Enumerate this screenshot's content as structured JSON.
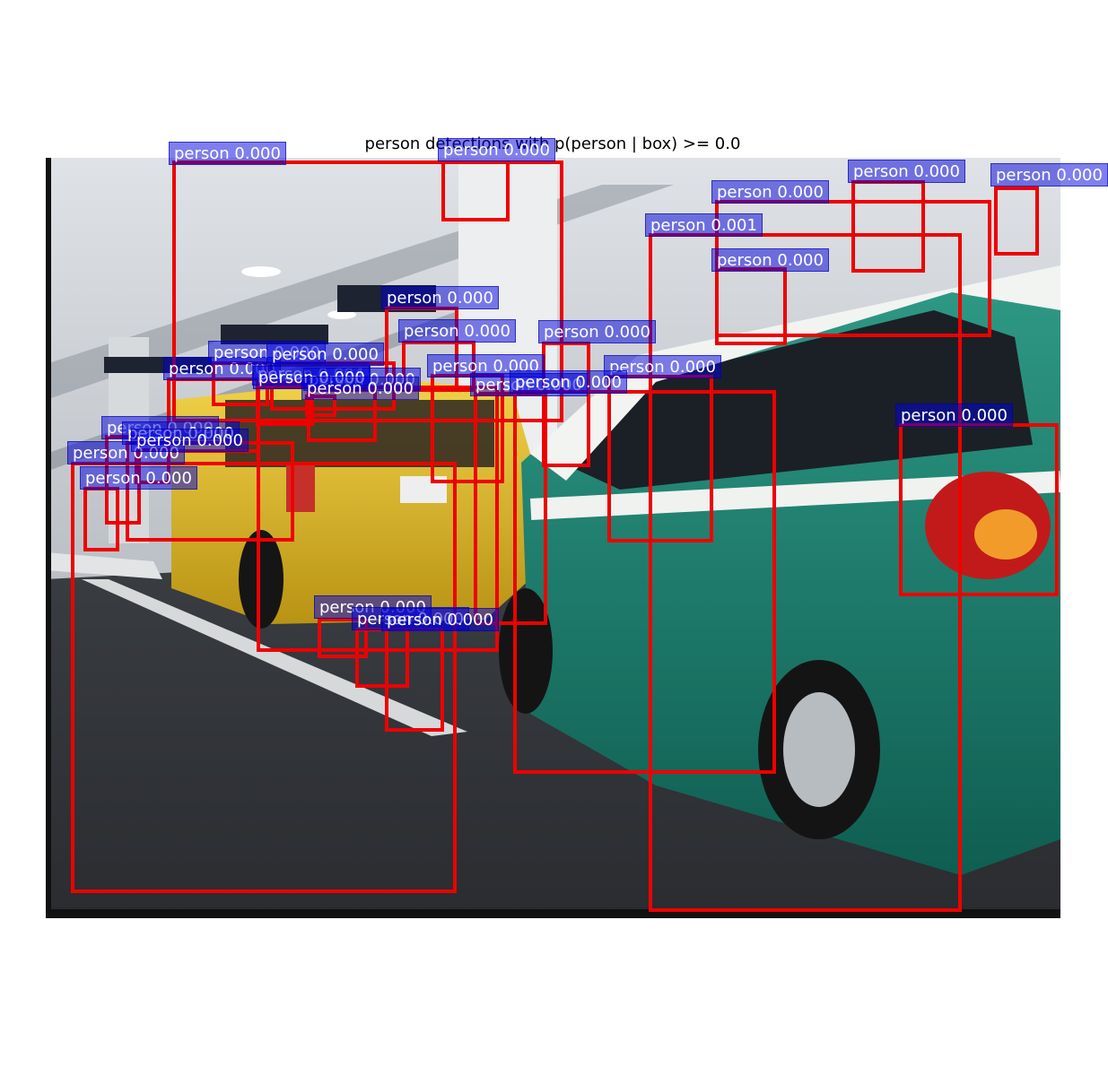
{
  "title": "person detections with p(person | box) >= 0.0",
  "colors": {
    "box": "#ee0000",
    "label_bg": "#0000dc",
    "label_text": "#ffffff"
  },
  "detections": [
    {
      "label": "person 0.000"
    },
    {
      "label": "person 0.000"
    },
    {
      "label": "person 0.000"
    },
    {
      "label": "person 0.000"
    },
    {
      "label": "person 0.000"
    },
    {
      "label": "person 0.001"
    },
    {
      "label": "person 0.000"
    },
    {
      "label": "person 0.000"
    },
    {
      "label": "person 0.000"
    },
    {
      "label": "person 0.000"
    },
    {
      "label": "person 0.000"
    },
    {
      "label": "person 0.000"
    },
    {
      "label": "person 0.000"
    },
    {
      "label": "person 0.004"
    },
    {
      "label": "person 0.000"
    },
    {
      "label": "person 0.000"
    },
    {
      "label": "person 0.000"
    },
    {
      "label": "person 0.000"
    },
    {
      "label": "person 0.000"
    },
    {
      "label": "person 0.000"
    },
    {
      "label": "person 0.000"
    },
    {
      "label": "person 0.000"
    },
    {
      "label": "person 0.000"
    },
    {
      "label": "person 0.000"
    },
    {
      "label": "person 0.000"
    },
    {
      "label": "person 0.000"
    },
    {
      "label": "person 0.000"
    },
    {
      "label": "person 0.000"
    },
    {
      "label": "person 0.000"
    },
    {
      "label": "person 0.000"
    }
  ]
}
